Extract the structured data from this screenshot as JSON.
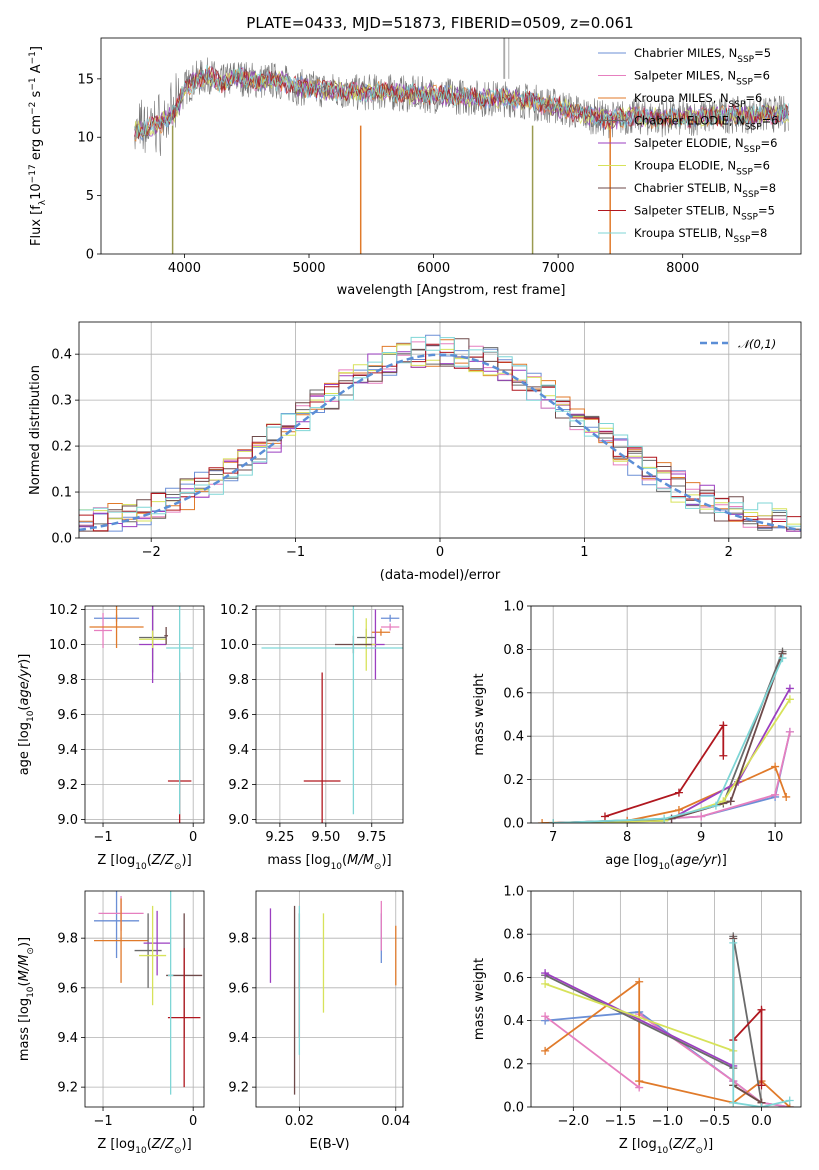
{
  "title": "PLATE=0433, MJD=51873, FIBERID=0509, z=0.061",
  "colors": {
    "Chabrier MILES": "#6b8fd6",
    "Salpeter MILES": "#e67fbf",
    "Kroupa MILES": "#e07a2a",
    "Chabrier ELODIE": "#6a6a6a",
    "Salpeter ELODIE": "#9b3fc0",
    "Kroupa ELODIE": "#d7e25a",
    "Chabrier STELIB": "#6e4a4a",
    "Salpeter STELIB": "#b0171f",
    "Kroupa STELIB": "#7fd6d6"
  },
  "chart_data": [
    {
      "id": "spectrum",
      "type": "line",
      "xlabel": "wavelength [Angstrom, rest frame]",
      "ylabel": "Flux [f_λ10^-17 erg cm^-2 s^-1 A^-1]",
      "xlim": [
        3330,
        8950
      ],
      "ylim": [
        0,
        18.5
      ],
      "xticks": [
        4000,
        5000,
        6000,
        7000,
        8000
      ],
      "yticks": [
        0,
        5,
        10,
        15
      ],
      "grid": false,
      "legend_position": "top-right",
      "series": [
        {
          "name": "Chabrier MILES, N_SSP=5"
        },
        {
          "name": "Salpeter MILES, N_SSP=6"
        },
        {
          "name": "Kroupa MILES, N_SSP=6"
        },
        {
          "name": "Chabrier ELODIE, N_SSP=6"
        },
        {
          "name": "Salpeter ELODIE, N_SSP=6"
        },
        {
          "name": "Kroupa ELODIE, N_SSP=6"
        },
        {
          "name": "Chabrier STELIB, N_SSP=8"
        },
        {
          "name": "Salpeter STELIB, N_SSP=5"
        },
        {
          "name": "Kroupa STELIB, N_SSP=8"
        }
      ],
      "continuum": {
        "x": [
          3600,
          3700,
          3800,
          3900,
          3950,
          4000,
          4100,
          4200,
          4300,
          4400,
          4500,
          4600,
          4700,
          4800,
          4900,
          5000,
          5200,
          5400,
          5600,
          5800,
          6000,
          6200,
          6400,
          6600,
          6800,
          7000,
          7200,
          7400,
          7600,
          7800,
          8000,
          8200,
          8400,
          8600,
          8800
        ],
        "y": [
          10.5,
          10.8,
          11.2,
          11.8,
          12.8,
          14.2,
          15.0,
          15.3,
          14.6,
          15.2,
          15.0,
          14.8,
          14.9,
          14.7,
          14.3,
          14.2,
          14.0,
          13.8,
          13.9,
          13.7,
          13.6,
          13.5,
          13.3,
          13.3,
          13.0,
          12.6,
          12.0,
          11.5,
          11.8,
          11.6,
          11.6,
          11.8,
          11.9,
          11.9,
          12.0
        ]
      }
    },
    {
      "id": "residuals",
      "type": "histogram",
      "xlabel": "(data-model)/error",
      "ylabel": "Normed distribution",
      "xlim": [
        -2.5,
        2.5
      ],
      "ylim": [
        0,
        0.47
      ],
      "xticks": [
        -2,
        -1,
        0,
        1,
        2
      ],
      "yticks": [
        0.0,
        0.1,
        0.2,
        0.3,
        0.4
      ],
      "grid": true,
      "legend_position": "top-right",
      "legend": "𝒩(0,1)",
      "bin_width": 0.1
    },
    {
      "id": "age-vs-Z",
      "type": "scatter",
      "xlabel": "Z [log10(Z/Z⊙)]",
      "ylabel": "age [log10(age/yr)]",
      "xlim": [
        -1.2,
        0.12
      ],
      "ylim": [
        8.98,
        10.22
      ],
      "xticks": [
        -1,
        0
      ],
      "yticks": [
        9.0,
        9.2,
        9.4,
        9.6,
        9.8,
        10.0,
        10.2
      ],
      "grid": true,
      "points": [
        {
          "series": "Chabrier MILES",
          "x": -0.85,
          "xerr": 0.25,
          "y": 10.15,
          "yerr": 0.02
        },
        {
          "series": "Salpeter MILES",
          "x": -1.0,
          "xerr": 0.1,
          "y": 10.08,
          "yerr": 0.1
        },
        {
          "series": "Kroupa MILES",
          "x": -0.85,
          "xerr": 0.3,
          "y": 10.1,
          "yerr": 0.12
        },
        {
          "series": "Chabrier ELODIE",
          "x": -0.45,
          "xerr": 0.15,
          "y": 10.04,
          "yerr": 0.2
        },
        {
          "series": "Salpeter ELODIE",
          "x": -0.45,
          "xerr": 0.15,
          "y": 10.0,
          "yerr": 0.22
        },
        {
          "series": "Kroupa ELODIE",
          "x": -0.45,
          "xerr": 0.15,
          "y": 10.03,
          "yerr": 0.05
        },
        {
          "series": "Chabrier STELIB",
          "x": -0.3,
          "xerr": 0.02,
          "y": 10.05,
          "yerr": 0.05
        },
        {
          "series": "Salpeter STELIB",
          "x": -0.15,
          "xerr": 0.13,
          "y": 9.22,
          "yerr": 0.62
        },
        {
          "series": "Kroupa STELIB",
          "x": -0.15,
          "xerr": 0.15,
          "y": 9.98,
          "yerr": 0.95
        }
      ]
    },
    {
      "id": "age-vs-mass",
      "type": "scatter",
      "xlabel": "mass [log10(M/M⊙)]",
      "ylabel": "",
      "xlim": [
        9.12,
        9.92
      ],
      "ylim": [
        8.98,
        10.22
      ],
      "xticks": [
        9.25,
        9.5,
        9.75
      ],
      "yticks": [
        9.0,
        9.2,
        9.4,
        9.6,
        9.8,
        10.0,
        10.2
      ],
      "grid": true,
      "points": [
        {
          "series": "Chabrier MILES",
          "x": 9.85,
          "xerr": 0.05,
          "y": 10.15,
          "yerr": 0.02
        },
        {
          "series": "Salpeter MILES",
          "x": 9.85,
          "xerr": 0.05,
          "y": 10.1,
          "yerr": 0.02
        },
        {
          "series": "Kroupa MILES",
          "x": 9.8,
          "xerr": 0.05,
          "y": 10.07,
          "yerr": 0.02
        },
        {
          "series": "Chabrier ELODIE",
          "x": 9.72,
          "xerr": 0.05,
          "y": 10.04,
          "yerr": 0.05
        },
        {
          "series": "Salpeter ELODIE",
          "x": 9.77,
          "xerr": 0.05,
          "y": 10.0,
          "yerr": 0.2
        },
        {
          "series": "Kroupa ELODIE",
          "x": 9.72,
          "xerr": 0.05,
          "y": 10.0,
          "yerr": 0.15
        },
        {
          "series": "Chabrier STELIB",
          "x": 9.65,
          "xerr": 0.1,
          "y": 10.0,
          "yerr": 0.05
        },
        {
          "series": "Salpeter STELIB",
          "x": 9.48,
          "xerr": 0.1,
          "y": 9.22,
          "yerr": 0.62
        },
        {
          "series": "Kroupa STELIB",
          "x": 9.65,
          "xerr": 0.5,
          "y": 9.98,
          "yerr": 0.95
        }
      ]
    },
    {
      "id": "weight-vs-age",
      "type": "line",
      "xlabel": "age [log10(age/yr)]",
      "ylabel": "mass weight",
      "xlim": [
        6.7,
        10.35
      ],
      "ylim": [
        0,
        1.0
      ],
      "xticks": [
        7,
        8,
        9,
        10
      ],
      "yticks": [
        0.0,
        0.2,
        0.4,
        0.6,
        0.8,
        1.0
      ],
      "grid": true,
      "series": [
        {
          "series": "Chabrier MILES",
          "x": [
            7.0,
            8.0,
            9.0,
            10.0,
            10.2
          ],
          "y": [
            0.0,
            0.01,
            0.03,
            0.12,
            0.42
          ]
        },
        {
          "series": "Salpeter MILES",
          "x": [
            7.0,
            8.0,
            9.0,
            10.0,
            10.2
          ],
          "y": [
            0.0,
            0.01,
            0.03,
            0.13,
            0.42
          ]
        },
        {
          "series": "Kroupa MILES",
          "x": [
            6.85,
            8.0,
            8.7,
            10.0,
            10.15
          ],
          "y": [
            0.0,
            0.01,
            0.06,
            0.26,
            0.12
          ]
        },
        {
          "series": "Chabrier ELODIE",
          "x": [
            7.0,
            8.5,
            9.3,
            10.1
          ],
          "y": [
            0.0,
            0.01,
            0.09,
            0.79
          ]
        },
        {
          "series": "Salpeter ELODIE",
          "x": [
            7.0,
            8.6,
            9.5,
            10.2
          ],
          "y": [
            0.0,
            0.02,
            0.19,
            0.62
          ]
        },
        {
          "series": "Kroupa ELODIE",
          "x": [
            7.0,
            8.5,
            9.3,
            10.2
          ],
          "y": [
            0.0,
            0.01,
            0.1,
            0.57
          ]
        },
        {
          "series": "Chabrier STELIB",
          "x": [
            7.0,
            8.6,
            9.4,
            10.1
          ],
          "y": [
            0.0,
            0.02,
            0.1,
            0.78
          ]
        },
        {
          "series": "Salpeter STELIB",
          "x": [
            7.7,
            8.7,
            9.3,
            9.3
          ],
          "y": [
            0.03,
            0.14,
            0.45,
            0.31
          ]
        },
        {
          "series": "Kroupa STELIB",
          "x": [
            7.0,
            8.5,
            9.2,
            10.1
          ],
          "y": [
            0.0,
            0.02,
            0.08,
            0.76
          ]
        }
      ]
    },
    {
      "id": "mass-vs-Z",
      "type": "scatter",
      "xlabel": "Z [log10(Z/Z⊙)]",
      "ylabel": "mass [log10(M/M⊙)]",
      "xlim": [
        -1.2,
        0.12
      ],
      "ylim": [
        9.12,
        9.99
      ],
      "xticks": [
        -1,
        0
      ],
      "yticks": [
        9.2,
        9.4,
        9.6,
        9.8
      ],
      "grid": true,
      "points": [
        {
          "series": "Chabrier MILES",
          "x": -0.85,
          "xerr": 0.25,
          "y": 9.87,
          "yerr": 0.15
        },
        {
          "series": "Salpeter MILES",
          "x": -0.8,
          "xerr": 0.25,
          "y": 9.9,
          "yerr": 0.07
        },
        {
          "series": "Kroupa MILES",
          "x": -0.8,
          "xerr": 0.3,
          "y": 9.79,
          "yerr": 0.17
        },
        {
          "series": "Chabrier ELODIE",
          "x": -0.5,
          "xerr": 0.15,
          "y": 9.75,
          "yerr": 0.15
        },
        {
          "series": "Salpeter ELODIE",
          "x": -0.4,
          "xerr": 0.15,
          "y": 9.78,
          "yerr": 0.13
        },
        {
          "series": "Kroupa ELODIE",
          "x": -0.45,
          "xerr": 0.15,
          "y": 9.73,
          "yerr": 0.2
        },
        {
          "series": "Chabrier STELIB",
          "x": -0.1,
          "xerr": 0.2,
          "y": 9.65,
          "yerr": 0.25
        },
        {
          "series": "Salpeter STELIB",
          "x": -0.1,
          "xerr": 0.18,
          "y": 9.48,
          "yerr": 0.28
        },
        {
          "series": "Kroupa STELIB",
          "x": -0.25,
          "xerr": 0.03,
          "y": 9.65,
          "yerr": 0.48
        }
      ]
    },
    {
      "id": "mass-vs-ebv",
      "type": "scatter",
      "xlabel": "E(B-V)",
      "ylabel": "",
      "xlim": [
        0.011,
        0.0415
      ],
      "ylim": [
        9.12,
        9.99
      ],
      "xticks": [
        0.02,
        0.04
      ],
      "yticks": [
        9.2,
        9.4,
        9.6,
        9.8
      ],
      "grid": true,
      "points": [
        {
          "series": "Chabrier MILES",
          "x": 0.037,
          "y": 9.8,
          "yerr": 0.1
        },
        {
          "series": "Salpeter MILES",
          "x": 0.037,
          "y": 9.85,
          "yerr": 0.1
        },
        {
          "series": "Kroupa MILES",
          "x": 0.04,
          "y": 9.73,
          "yerr": 0.12
        },
        {
          "series": "Chabrier ELODIE",
          "x": 0.02,
          "y": 9.75,
          "yerr": 0.15
        },
        {
          "series": "Salpeter ELODIE",
          "x": 0.014,
          "y": 9.77,
          "yerr": 0.15
        },
        {
          "series": "Kroupa ELODIE",
          "x": 0.025,
          "y": 9.7,
          "yerr": 0.2
        },
        {
          "series": "Chabrier STELIB",
          "x": 0.019,
          "y": 9.55,
          "yerr": 0.38
        },
        {
          "series": "Salpeter STELIB",
          "x": 0.02,
          "y": 9.6,
          "yerr": 0.2
        },
        {
          "series": "Kroupa STELIB",
          "x": 0.02,
          "y": 9.63,
          "yerr": 0.3
        }
      ]
    },
    {
      "id": "weight-vs-Z",
      "type": "line",
      "xlabel": "Z [log10(Z/Z⊙)]",
      "ylabel": "mass weight",
      "xlim": [
        -2.45,
        0.42
      ],
      "ylim": [
        0,
        1.0
      ],
      "xticks": [
        -2.0,
        -1.5,
        -1.0,
        -0.5,
        0.0
      ],
      "yticks": [
        0.0,
        0.2,
        0.4,
        0.6,
        0.8,
        1.0
      ],
      "grid": true,
      "series": [
        {
          "series": "Chabrier MILES",
          "x": [
            -2.3,
            -1.3,
            -0.3,
            0.0,
            0.3
          ],
          "y": [
            0.4,
            0.44,
            0.12,
            0.02,
            0.0
          ]
        },
        {
          "series": "Salpeter MILES",
          "x": [
            -2.3,
            -1.3,
            -1.3,
            -0.3,
            0.0,
            0.3
          ],
          "y": [
            0.42,
            0.09,
            0.43,
            0.12,
            0.02,
            0.0
          ]
        },
        {
          "series": "Kroupa MILES",
          "x": [
            -2.3,
            -1.3,
            -1.3,
            -0.3,
            0.0,
            0.3
          ],
          "y": [
            0.26,
            0.58,
            0.12,
            0.02,
            0.12,
            0.0
          ]
        },
        {
          "series": "Chabrier ELODIE",
          "x": [
            -2.3,
            -0.3,
            -0.3,
            0.0
          ],
          "y": [
            0.61,
            0.18,
            0.79,
            0.02
          ]
        },
        {
          "series": "Salpeter ELODIE",
          "x": [
            -2.3,
            -0.3,
            -0.3,
            0.0
          ],
          "y": [
            0.62,
            0.19,
            0.1,
            0.02
          ]
        },
        {
          "series": "Kroupa ELODIE",
          "x": [
            -2.3,
            -0.3,
            -0.3,
            0.0
          ],
          "y": [
            0.57,
            0.26,
            0.1,
            0.02
          ]
        },
        {
          "series": "Chabrier STELIB",
          "x": [
            -0.3,
            -0.3,
            0.0
          ],
          "y": [
            0.78,
            0.1,
            0.02
          ]
        },
        {
          "series": "Salpeter STELIB",
          "x": [
            -0.3,
            0.0,
            0.0
          ],
          "y": [
            0.31,
            0.45,
            0.1
          ]
        },
        {
          "series": "Kroupa STELIB",
          "x": [
            -0.3,
            -0.3,
            0.0,
            0.3
          ],
          "y": [
            0.76,
            0.02,
            0.0,
            0.03
          ]
        }
      ]
    }
  ]
}
